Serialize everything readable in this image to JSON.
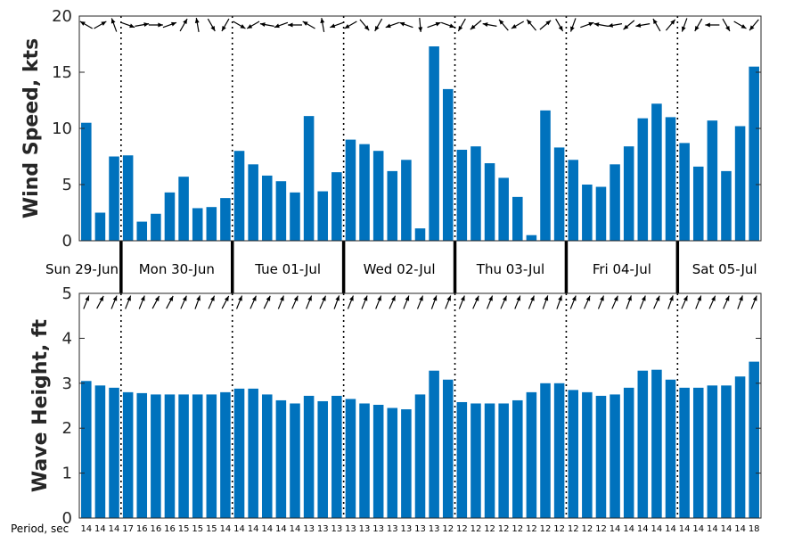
{
  "chart_data": [
    {
      "type": "bar",
      "ylabel": "Wind Speed, kts",
      "ylim": [
        0,
        20
      ],
      "yticks": [
        0,
        5,
        10,
        15,
        20
      ],
      "bar_color": "#0072bd",
      "values": [
        10.5,
        2.5,
        7.5,
        7.6,
        1.7,
        2.4,
        4.3,
        5.7,
        2.9,
        3.0,
        3.8,
        8.0,
        6.8,
        5.8,
        5.3,
        4.3,
        11.1,
        4.4,
        6.1,
        9.0,
        8.6,
        8.0,
        6.2,
        7.2,
        1.1,
        17.3,
        13.5,
        8.1,
        8.4,
        6.9,
        5.6,
        3.9,
        0.5,
        11.6,
        8.3,
        7.2,
        5.0,
        4.8,
        6.8,
        8.4,
        10.9,
        12.2,
        11.0,
        8.7,
        6.6,
        10.7,
        6.2,
        10.2,
        15.5
      ],
      "arrow_angles_deg": [
        150,
        30,
        110,
        340,
        10,
        0,
        20,
        60,
        100,
        300,
        240,
        330,
        210,
        170,
        200,
        180,
        150,
        100,
        200,
        210,
        310,
        240,
        200,
        160,
        275,
        20,
        340,
        240,
        220,
        170,
        130,
        210,
        130,
        40,
        300,
        250,
        20,
        170,
        190,
        220,
        190,
        120,
        50,
        250,
        240,
        180,
        300,
        330,
        230
      ]
    },
    {
      "type": "bar",
      "ylabel": "Wave Height, ft",
      "ylim": [
        0,
        5
      ],
      "yticks": [
        0,
        1,
        2,
        3,
        4,
        5
      ],
      "bar_color": "#0072bd",
      "values": [
        3.05,
        2.95,
        2.9,
        2.8,
        2.78,
        2.75,
        2.75,
        2.75,
        2.75,
        2.75,
        2.8,
        2.88,
        2.88,
        2.75,
        2.62,
        2.55,
        2.72,
        2.6,
        2.72,
        2.65,
        2.55,
        2.52,
        2.45,
        2.42,
        2.75,
        3.28,
        3.08,
        2.58,
        2.55,
        2.55,
        2.55,
        2.62,
        2.8,
        3.0,
        3.0,
        2.85,
        2.8,
        2.72,
        2.75,
        2.9,
        3.28,
        3.3,
        3.08,
        2.9,
        2.9,
        2.95,
        2.95,
        3.15,
        3.48
      ],
      "arrow_angles_deg": [
        68,
        62,
        68,
        68,
        68,
        62,
        62,
        66,
        70,
        66,
        62,
        68,
        66,
        64,
        68,
        66,
        68,
        66,
        70,
        68,
        68,
        68,
        66,
        68,
        68,
        70,
        68,
        68,
        66,
        68,
        66,
        68,
        68,
        70,
        70,
        68,
        66,
        68,
        66,
        70,
        68,
        66,
        70,
        66,
        68,
        66,
        66,
        70,
        68
      ],
      "period_label": "Period, sec",
      "periods": [
        "14",
        "14",
        "14",
        "17",
        "16",
        "16",
        "16",
        "15",
        "15",
        "15",
        "14",
        "14",
        "14",
        "14",
        "14",
        "14",
        "13",
        "13",
        "13",
        "13",
        "13",
        "13",
        "13",
        "13",
        "13",
        "13",
        "12",
        "12",
        "12",
        "12",
        "12",
        "12",
        "12",
        "12",
        "12",
        "12",
        "12",
        "12",
        "14",
        "14",
        "14",
        "14",
        "14",
        "14",
        "14",
        "14",
        "14",
        "14",
        "18"
      ]
    }
  ],
  "days": [
    "Sun 29-Jun",
    "Mon 30-Jun",
    "Tue 01-Jul",
    "Wed 02-Jul",
    "Thu 03-Jul",
    "Fri 04-Jul",
    "Sat 05-Jul"
  ],
  "day_start_index": [
    3,
    11,
    19,
    27,
    35,
    43
  ]
}
